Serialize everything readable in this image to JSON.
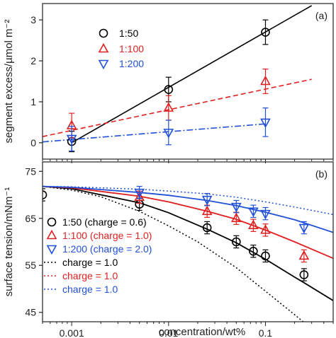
{
  "chart_data": [
    {
      "panel": "(a)",
      "type": "scatter",
      "ylabel": "segment excess/µmol m⁻²",
      "xscale": "log",
      "xlim": [
        0.0005,
        0.5
      ],
      "ylim": [
        -0.4,
        3.4
      ],
      "yticks": [
        0,
        1,
        2,
        3
      ],
      "ytick_labels": [
        "0",
        "1",
        "2",
        "3"
      ],
      "legend_position": "top-center",
      "series": [
        {
          "name": "1:50",
          "color": "#000000",
          "marker": "circle",
          "x": [
            0.001,
            0.01,
            0.1
          ],
          "y": [
            0.03,
            1.3,
            2.7
          ],
          "yerr": [
            0.25,
            0.3,
            0.3
          ]
        },
        {
          "name": "1:100",
          "color": "#e02020",
          "marker": "triangle-up",
          "x": [
            0.001,
            0.01,
            0.1
          ],
          "y": [
            0.42,
            0.85,
            1.5
          ],
          "yerr": [
            0.3,
            0.3,
            0.3
          ]
        },
        {
          "name": "1:200",
          "color": "#2050d8",
          "marker": "triangle-down",
          "x": [
            0.001,
            0.01,
            0.1
          ],
          "y": [
            0.1,
            0.25,
            0.5
          ],
          "yerr": [
            0.3,
            0.3,
            0.35
          ]
        }
      ],
      "fits": [
        {
          "color": "#000000",
          "dash": "solid",
          "x": [
            0.001,
            0.3
          ],
          "y": [
            0.0,
            3.35
          ]
        },
        {
          "color": "#e02020",
          "dash": "dashed",
          "x": [
            0.0005,
            0.3
          ],
          "y": [
            0.15,
            1.55
          ]
        },
        {
          "color": "#2050d8",
          "dash": "dashdot",
          "x": [
            0.0005,
            0.1
          ],
          "y": [
            0.02,
            0.46
          ]
        }
      ]
    },
    {
      "panel": "(b)",
      "type": "scatter",
      "xlabel": "concentration/wt%",
      "ylabel": "surface tension/mNm⁻¹",
      "xscale": "log",
      "xlim": [
        0.0005,
        0.5
      ],
      "ylim": [
        43,
        77
      ],
      "yticks": [
        45,
        55,
        65,
        75
      ],
      "ytick_labels": [
        "45",
        "55",
        "65",
        "75"
      ],
      "xticks": [
        0.001,
        0.01,
        0.1
      ],
      "xtick_labels": [
        "0.001",
        "0.01",
        "0.1"
      ],
      "legend_position": "bottom-left",
      "series": [
        {
          "name": "1:50 (charge = 0.6)",
          "color": "#000000",
          "marker": "circle",
          "x": [
            0.0005,
            0.005,
            0.025,
            0.05,
            0.075,
            0.1,
            0.25
          ],
          "y": [
            70,
            68,
            63,
            60,
            58,
            57,
            53
          ],
          "yerr": [
            1.3,
            1.3,
            1.3,
            1.3,
            1.3,
            1.3,
            1.3
          ]
        },
        {
          "name": "1:100 (charge = 1.0)",
          "color": "#e02020",
          "marker": "triangle-up",
          "x": [
            0.005,
            0.025,
            0.05,
            0.075,
            0.1,
            0.25
          ],
          "y": [
            69.5,
            66.5,
            65,
            63.5,
            62.5,
            57
          ],
          "yerr": [
            1.3,
            1.3,
            1.3,
            1.3,
            1.3,
            1.3
          ]
        },
        {
          "name": "1:200 (charge = 2.0)",
          "color": "#2050d8",
          "marker": "triangle-down",
          "x": [
            0.005,
            0.025,
            0.05,
            0.075,
            0.1,
            0.25
          ],
          "y": [
            70.5,
            69,
            67.5,
            66.5,
            66,
            63
          ],
          "yerr": [
            1.3,
            1.3,
            1.3,
            1.3,
            1.3,
            1.3
          ]
        }
      ],
      "fit_curves": [
        {
          "color": "#000000",
          "dash": "solid",
          "x": [
            0.0005,
            0.001,
            0.005,
            0.01,
            0.025,
            0.05,
            0.1,
            0.2,
            0.25,
            0.5
          ],
          "y": [
            71.8,
            71.3,
            68.3,
            66.2,
            62.7,
            59.8,
            56.3,
            52.5,
            51.3,
            47.5
          ]
        },
        {
          "color": "#e02020",
          "dash": "solid",
          "x": [
            0.0005,
            0.001,
            0.005,
            0.01,
            0.025,
            0.05,
            0.1,
            0.2,
            0.5
          ],
          "y": [
            71.8,
            71.5,
            69.7,
            68.5,
            66.5,
            64.8,
            62.5,
            60.0,
            56.5
          ]
        },
        {
          "color": "#2050d8",
          "dash": "solid",
          "x": [
            0.0005,
            0.001,
            0.005,
            0.01,
            0.025,
            0.05,
            0.1,
            0.2,
            0.5
          ],
          "y": [
            71.8,
            71.6,
            70.5,
            69.9,
            68.8,
            67.7,
            66.3,
            64.7,
            62.0
          ]
        }
      ],
      "reference_curves": [
        {
          "name": "charge = 1.0",
          "color": "#000000",
          "dash": "dotted",
          "x": [
            0.0005,
            0.001,
            0.002,
            0.005,
            0.01,
            0.02,
            0.05,
            0.1,
            0.2,
            0.3
          ],
          "y": [
            71.8,
            71.0,
            69.6,
            66.5,
            63.4,
            60.0,
            54.5,
            49.5,
            44.5,
            41.5
          ]
        },
        {
          "name": "charge = 1.0",
          "color": "#e02020",
          "dash": "dotted",
          "x": [
            0.0005,
            0.001,
            0.005,
            0.01,
            0.025,
            0.05,
            0.1,
            0.2,
            0.5
          ],
          "y": [
            71.8,
            71.5,
            69.7,
            68.5,
            66.5,
            64.8,
            62.5,
            60.0,
            56.5
          ]
        },
        {
          "name": "charge = 1.0",
          "color": "#2050d8",
          "dash": "dotted",
          "x": [
            0.0005,
            0.001,
            0.005,
            0.01,
            0.025,
            0.05,
            0.1,
            0.2,
            0.5
          ],
          "y": [
            71.8,
            71.7,
            71.2,
            70.8,
            70.2,
            69.5,
            68.5,
            67.4,
            65.8
          ]
        }
      ]
    }
  ]
}
